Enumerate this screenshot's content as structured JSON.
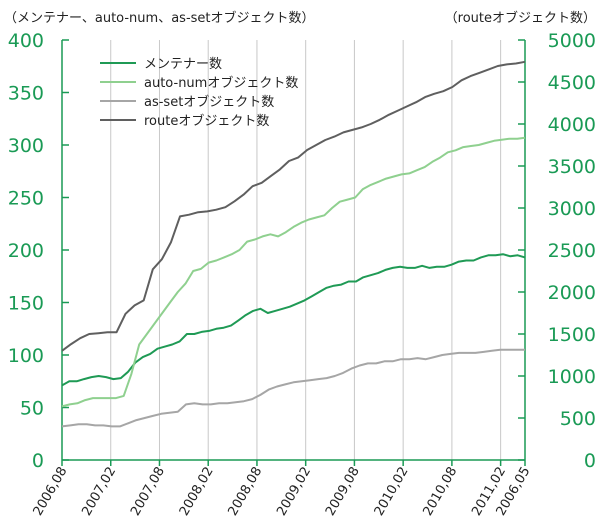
{
  "chart_data": {
    "type": "line",
    "left_axis_label": "（メンテナー、auto-num、as-setオブジェクト数）",
    "right_axis_label": "（routeオブジェクト数）",
    "left_ticks": [
      "0",
      "50",
      "100",
      "150",
      "200",
      "250",
      "300",
      "350",
      "400"
    ],
    "right_ticks": [
      "0",
      "500",
      "1000",
      "1500",
      "2000",
      "2500",
      "3000",
      "3500",
      "4000",
      "4500",
      "5000"
    ],
    "left_ylim": [
      0,
      400
    ],
    "right_ylim": [
      0,
      5000
    ],
    "x_tick_labels": [
      "2006,08",
      "2007,02",
      "2007,08",
      "2008,02",
      "2008,08",
      "2009,02",
      "2009,08",
      "2010,02",
      "2010,08",
      "2011,02",
      "2006,05"
    ],
    "x_tick_months": [
      0,
      6,
      12,
      18,
      24,
      30,
      36,
      42,
      48,
      54,
      57
    ],
    "xlim": [
      0,
      57
    ],
    "legend_position": "top-left",
    "grid": "vertical",
    "colors": {
      "axis": "#1a9a55",
      "grid": "#c8c8c8"
    },
    "series": [
      {
        "name": "メンテナー数",
        "axis": "left",
        "color": "#1f9a55",
        "values": [
          71,
          75,
          75,
          77,
          79,
          80,
          79,
          77,
          78,
          84,
          93,
          98,
          101,
          106,
          108,
          110,
          113,
          120,
          120,
          122,
          123,
          125,
          126,
          128,
          133,
          138,
          142,
          144,
          140,
          142,
          144,
          146,
          149,
          152,
          156,
          160,
          164,
          166,
          167,
          170,
          170,
          174,
          176,
          178,
          181,
          183,
          184,
          183,
          183,
          185,
          183,
          184,
          184,
          186,
          189,
          190,
          190,
          193,
          195,
          195,
          196,
          194,
          195,
          193
        ]
      },
      {
        "name": "auto-numオブジェクト数",
        "axis": "left",
        "color": "#8fd08f",
        "values": [
          51,
          53,
          54,
          57,
          59,
          59,
          59,
          59,
          61,
          82,
          110,
          120,
          130,
          140,
          150,
          160,
          168,
          180,
          182,
          188,
          190,
          193,
          196,
          200,
          208,
          210,
          213,
          215,
          213,
          217,
          222,
          226,
          229,
          231,
          233,
          240,
          246,
          248,
          250,
          258,
          262,
          265,
          268,
          270,
          272,
          273,
          276,
          279,
          284,
          288,
          293,
          295,
          298,
          299,
          300,
          302,
          304,
          305,
          306,
          306,
          307
        ]
      },
      {
        "name": "as-setオブジェクト数",
        "axis": "left",
        "color": "#a6a6a6",
        "values": [
          32,
          33,
          34,
          34,
          33,
          33,
          32,
          32,
          35,
          38,
          40,
          42,
          44,
          45,
          46,
          53,
          54,
          53,
          53,
          54,
          54,
          55,
          56,
          58,
          62,
          67,
          70,
          72,
          74,
          75,
          76,
          77,
          78,
          80,
          83,
          87,
          90,
          92,
          92,
          94,
          94,
          96,
          96,
          97,
          96,
          98,
          100,
          101,
          102,
          102,
          102,
          103,
          104,
          105,
          105,
          105,
          105
        ]
      },
      {
        "name": "routeオブジェクト数",
        "axis": "right",
        "color": "#5f5f5f",
        "values": [
          1300,
          1380,
          1450,
          1500,
          1510,
          1520,
          1520,
          1740,
          1840,
          1900,
          2270,
          2390,
          2590,
          2900,
          2920,
          2950,
          2960,
          2980,
          3010,
          3080,
          3160,
          3260,
          3300,
          3380,
          3460,
          3560,
          3600,
          3690,
          3750,
          3810,
          3850,
          3900,
          3930,
          3960,
          4000,
          4050,
          4110,
          4160,
          4210,
          4260,
          4320,
          4360,
          4390,
          4440,
          4520,
          4570,
          4610,
          4650,
          4690,
          4710,
          4720,
          4740
        ]
      }
    ]
  }
}
